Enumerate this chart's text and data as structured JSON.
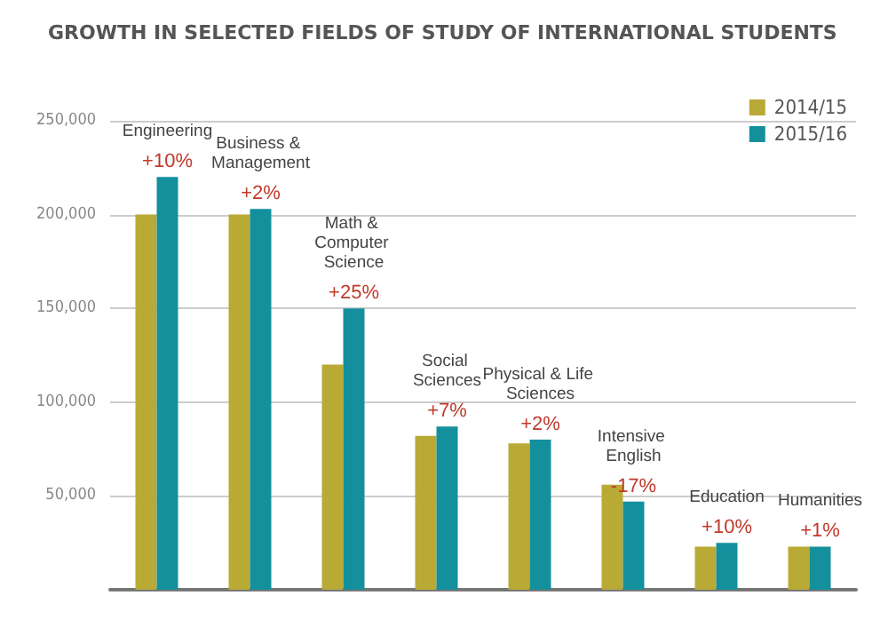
{
  "chart_data": {
    "type": "bar",
    "title": "GROWTH IN SELECTED FIELDS OF STUDY OF INTERNATIONAL STUDENTS",
    "categories": [
      "Engineering",
      "Business & Management",
      "Math & Computer Science",
      "Social Sciences",
      "Physical & Life Sciences",
      "Intensive English",
      "Education",
      "Humanities"
    ],
    "series": [
      {
        "name": "2014/15",
        "color": "#b8aa35",
        "values": [
          200000,
          200000,
          120000,
          82000,
          78000,
          56000,
          23000,
          23000
        ]
      },
      {
        "name": "2015/16",
        "color": "#14909d",
        "values": [
          220000,
          203000,
          150000,
          87000,
          80000,
          47000,
          25000,
          23000
        ]
      }
    ],
    "annotations": [
      {
        "text": "+10%",
        "x": "Engineering",
        "y": 220000
      },
      {
        "text": "+2%",
        "x": "Business & Management",
        "y": 203000
      },
      {
        "text": "+25%",
        "x": "Math & Computer Science",
        "y": 150000
      },
      {
        "text": "+7%",
        "x": "Social Sciences",
        "y": 87000
      },
      {
        "text": "+2%",
        "x": "Physical & Life Sciences",
        "y": 80000
      },
      {
        "text": "-17%",
        "x": "Intensive English",
        "y": 47000
      },
      {
        "text": "+10%",
        "x": "Education",
        "y": 25000
      },
      {
        "text": "+1%",
        "x": "Humanities",
        "y": 23000
      }
    ],
    "ylim": [
      0,
      250000
    ],
    "yticks": [
      {
        "value": 0,
        "label": null
      },
      {
        "value": 50000,
        "label": "50,000"
      },
      {
        "value": 100000,
        "label": "100,000"
      },
      {
        "value": 150000,
        "label": "150,000"
      },
      {
        "value": 200000,
        "label": "200,000"
      },
      {
        "value": 250000,
        "label": "250,000"
      }
    ],
    "grid": "y",
    "legend": "top right",
    "tick_labels": "y"
  }
}
